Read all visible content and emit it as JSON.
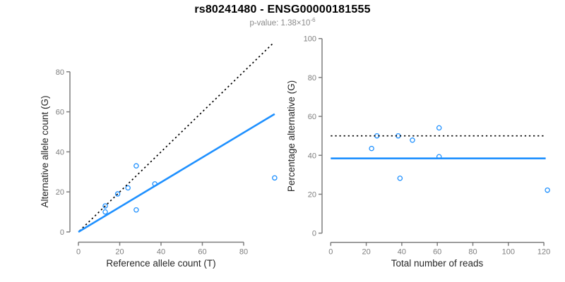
{
  "header": {
    "title": "rs80241480 - ENSG00000181555",
    "subtitle_base": "p-value: 1.38×10",
    "subtitle_exponent": "-6"
  },
  "colors": {
    "accent_blue": "#1E90FF",
    "line_black": "#000000",
    "axis_gray": "#7e7e7e",
    "axis_title_dark": "#262626",
    "subtitle_gray": "#8a8a8a"
  },
  "chart_data": [
    {
      "type": "scatter",
      "name": "allele-counts",
      "title": "",
      "xlabel": "Reference allele count (T)",
      "ylabel": "Alternative allele count (G)",
      "xticks": [
        0,
        20,
        40,
        60,
        80
      ],
      "yticks": [
        0,
        20,
        40,
        60,
        80
      ],
      "xlim": [
        0,
        95
      ],
      "ylim": [
        0,
        95
      ],
      "grid": false,
      "points": [
        [
          13,
          13
        ],
        [
          13,
          10
        ],
        [
          19,
          19
        ],
        [
          24,
          22
        ],
        [
          28,
          33
        ],
        [
          28,
          11
        ],
        [
          37,
          24
        ],
        [
          95,
          27
        ]
      ],
      "lines": [
        {
          "name": "identity-line",
          "style": "dotted",
          "color": "#000000",
          "x1": 0.5,
          "y1": 0.5,
          "x2": 94.5,
          "y2": 94.5
        },
        {
          "name": "fit-line",
          "style": "solid",
          "color": "#1E90FF",
          "x1": 0,
          "y1": 0,
          "x2": 95,
          "y2": 58.9
        }
      ]
    },
    {
      "type": "scatter",
      "name": "percentage-vs-coverage",
      "title": "",
      "xlabel": "Total number of reads",
      "ylabel": "Percentage alternative (G)",
      "xticks": [
        0,
        20,
        40,
        60,
        80,
        100,
        120
      ],
      "yticks": [
        0,
        20,
        40,
        60,
        80,
        100
      ],
      "xlim": [
        0,
        122
      ],
      "ylim": [
        0,
        100
      ],
      "grid": false,
      "points": [
        [
          23,
          43.5
        ],
        [
          26,
          50
        ],
        [
          38,
          50
        ],
        [
          46,
          47.8
        ],
        [
          61,
          54.1
        ],
        [
          61,
          39.3
        ],
        [
          39,
          28.2
        ],
        [
          122,
          22.1
        ]
      ],
      "lines": [
        {
          "name": "expected-50pct-line",
          "style": "dotted",
          "color": "#000000",
          "x1": 0,
          "y1": 50,
          "x2": 120,
          "y2": 50
        },
        {
          "name": "observed-mean-line",
          "style": "solid",
          "color": "#1E90FF",
          "x1": 0,
          "y1": 38.4,
          "x2": 121,
          "y2": 38.4
        }
      ]
    }
  ]
}
